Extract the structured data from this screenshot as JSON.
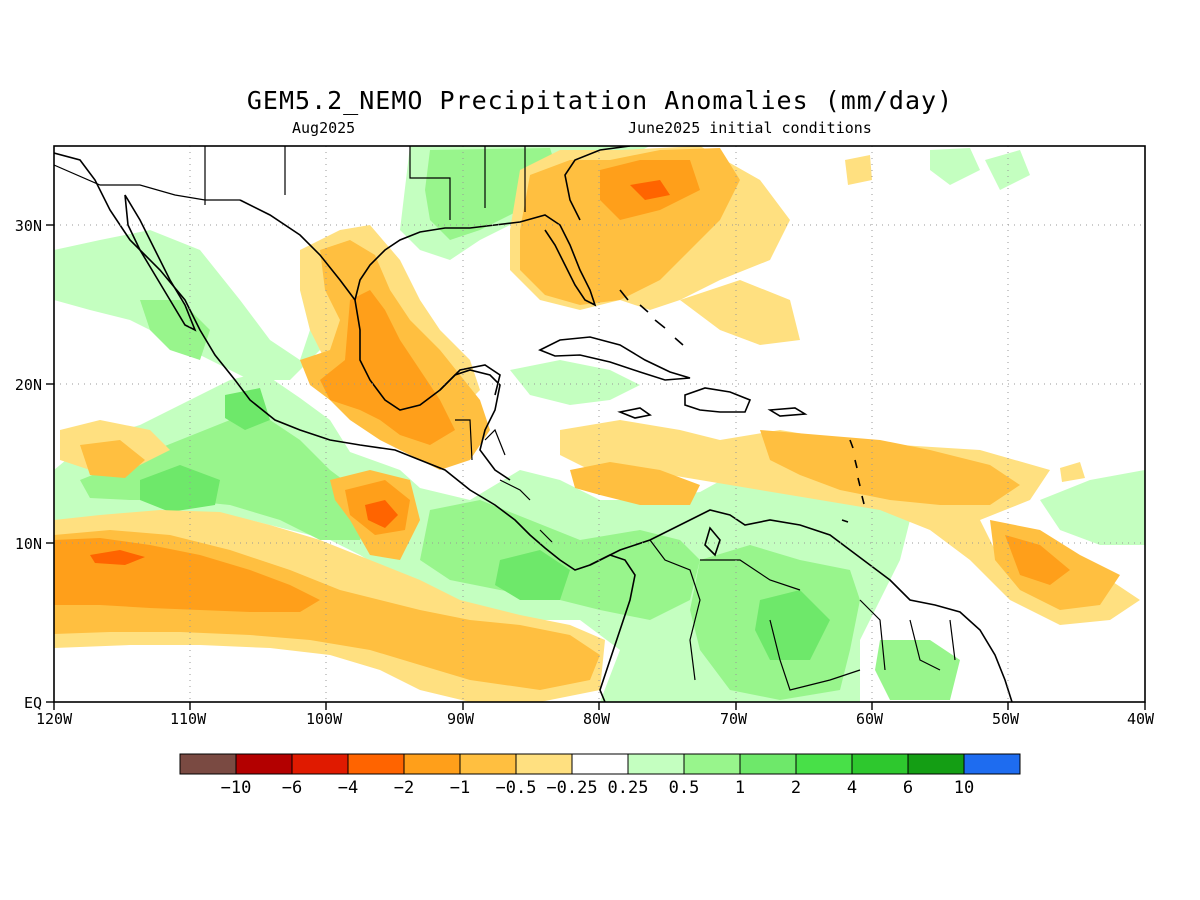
{
  "header": {
    "title": "GEM5.2_NEMO Precipitation Anomalies (mm/day)",
    "valid_month": "Aug2025",
    "init": "June2025 initial conditions"
  },
  "map": {
    "lon_range": [
      -120,
      -40
    ],
    "lat_range": [
      0,
      35
    ],
    "lon_ticks": [
      "120W",
      "110W",
      "100W",
      "90W",
      "80W",
      "70W",
      "60W",
      "50W",
      "40W"
    ],
    "lat_ticks": [
      "EQ",
      "10N",
      "20N",
      "30N"
    ],
    "land_color": "#ffffff",
    "coast_color": "#000000"
  },
  "colorbar": {
    "colors": [
      "#7a4a42",
      "#b30000",
      "#e01a00",
      "#ff6400",
      "#ff9f1a",
      "#ffbf40",
      "#ffe080",
      "#ffffff",
      "#c4ffc0",
      "#98f58c",
      "#6ee86a",
      "#48e048",
      "#2ec82e",
      "#149e14",
      "#1e6cf0"
    ],
    "labels": [
      "−10",
      "−6",
      "−4",
      "−2",
      "−1",
      "−0.5",
      "−0.25",
      "0.25",
      "0.5",
      "1",
      "2",
      "4",
      "6",
      "10"
    ]
  },
  "anomalies": [
    {
      "level": "-1",
      "color": "#ffbf40",
      "region": "Eastern Pacific ITCZ band 6-12N"
    },
    {
      "level": "-2",
      "color": "#ff9f1a",
      "region": "Eastern Pacific ITCZ band 6-12N"
    },
    {
      "level": "-4",
      "color": "#ff6400",
      "region": "near 115W 9N"
    },
    {
      "level": "-2",
      "color": "#ff9f1a",
      "region": "Gulf of Mexico / southern Mexico"
    },
    {
      "level": "-1",
      "color": "#ffbf40",
      "region": "Florida and western Atlantic"
    },
    {
      "level": "-1",
      "color": "#ffbf40",
      "region": "Tropical Atlantic 12-16N"
    },
    {
      "level": "1",
      "color": "#6ee86a",
      "region": "Eastern Pacific near 110W 12N"
    },
    {
      "level": "1",
      "color": "#6ee86a",
      "region": "Northern South America"
    },
    {
      "level": "2",
      "color": "#48e048",
      "region": "Panama / Colombia Pacific coast"
    },
    {
      "level": "0.5",
      "color": "#98f58c",
      "region": "Gulf coast and southeastern US"
    }
  ]
}
